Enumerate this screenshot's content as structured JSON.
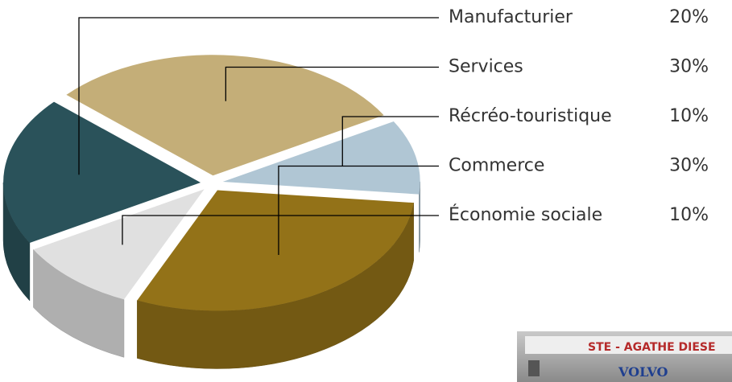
{
  "chart_data": {
    "type": "pie",
    "categories": [
      "Manufacturier",
      "Services",
      "Récréo-touristique",
      "Commerce",
      "Économie sociale"
    ],
    "values": [
      20,
      30,
      10,
      30,
      10
    ],
    "value_labels": [
      "20%",
      "30%",
      "10%",
      "30%",
      "10%"
    ],
    "colors": [
      "#2a525a",
      "#c4ae78",
      "#b0c6d4",
      "#937218",
      "#e0e0e0"
    ]
  },
  "photo": {
    "sign": "STE - AGATHE DIESE",
    "brand": "VOLVO"
  }
}
